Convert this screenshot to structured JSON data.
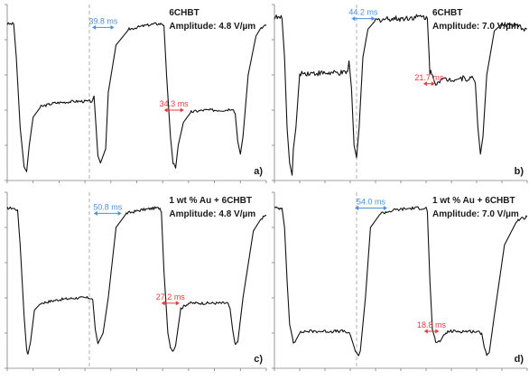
{
  "chart_data": [
    {
      "type": "line",
      "panel": "a)",
      "title": "6CHBT",
      "subtitle": "Amplitude: 4.8 V/µm",
      "xlabel": "",
      "ylabel": "",
      "grid": false,
      "xlim": [
        0,
        100
      ],
      "ylim": [
        0,
        100
      ],
      "series": [
        {
          "points": [
            [
              0,
              89
            ],
            [
              2.5,
              89
            ],
            [
              3.5,
              70
            ],
            [
              5,
              30
            ],
            [
              6.5,
              8
            ],
            [
              7.5,
              5
            ],
            [
              8.5,
              20
            ],
            [
              10,
              36
            ],
            [
              13,
              42
            ],
            [
              18,
              44
            ],
            [
              26,
              45
            ],
            [
              33,
              45
            ],
            [
              33.5,
              48
            ],
            [
              34,
              37
            ],
            [
              35,
              14
            ],
            [
              36,
              10
            ],
            [
              38,
              18
            ],
            [
              39,
              50
            ],
            [
              42,
              77
            ],
            [
              47,
              86
            ],
            [
              53,
              88
            ],
            [
              57,
              89
            ],
            [
              60,
              89
            ],
            [
              60.5,
              88
            ],
            [
              61.5,
              60
            ],
            [
              63,
              25
            ],
            [
              64,
              10
            ],
            [
              65,
              7
            ],
            [
              66,
              20
            ],
            [
              68,
              33
            ],
            [
              71,
              39
            ],
            [
              76,
              40
            ],
            [
              84,
              40
            ],
            [
              87,
              41
            ],
            [
              88,
              38
            ],
            [
              89,
              22
            ],
            [
              90,
              15
            ],
            [
              91,
              25
            ],
            [
              93,
              60
            ],
            [
              96,
              82
            ],
            [
              98,
              87
            ],
            [
              100,
              88
            ]
          ],
          "noise": 0.8
        }
      ],
      "annotations": [
        {
          "text": "39.8 ms",
          "color": "#4a90d9",
          "x1": 32.8,
          "x2": 41.3,
          "y": 87
        },
        {
          "text": "34.3 ms",
          "color": "#e53a3a",
          "x1": 60.5,
          "x2": 68.2,
          "y": 40
        }
      ]
    },
    {
      "type": "line",
      "panel": "b)",
      "title": "6CHBT",
      "subtitle": "Amplitude: 7.0 V/µm",
      "xlabel": "",
      "ylabel": "",
      "grid": false,
      "xlim": [
        0,
        100
      ],
      "ylim": [
        0,
        100
      ],
      "series": [
        {
          "points": [
            [
              0,
              93
            ],
            [
              3,
              92
            ],
            [
              4,
              70
            ],
            [
              5,
              30
            ],
            [
              6,
              10
            ],
            [
              7,
              3
            ],
            [
              7.5,
              18
            ],
            [
              8.5,
              30
            ],
            [
              10,
              61
            ],
            [
              28,
              61
            ],
            [
              29,
              62
            ],
            [
              29.5,
              68
            ],
            [
              30.5,
              52
            ],
            [
              31.5,
              20
            ],
            [
              32.5,
              13
            ],
            [
              33.5,
              30
            ],
            [
              35,
              70
            ],
            [
              37,
              86
            ],
            [
              40,
              91
            ],
            [
              45,
              92
            ],
            [
              50,
              92
            ],
            [
              57,
              93
            ],
            [
              59,
              93
            ],
            [
              60.5,
              92
            ],
            [
              61.5,
              62
            ],
            [
              62.5,
              60
            ],
            [
              63.5,
              55
            ],
            [
              65,
              57
            ],
            [
              73,
              58
            ],
            [
              79,
              58
            ],
            [
              79.5,
              55
            ],
            [
              80.5,
              30
            ],
            [
              81.5,
              15
            ],
            [
              82.5,
              25
            ],
            [
              84,
              60
            ],
            [
              87,
              85
            ],
            [
              90,
              89
            ],
            [
              95,
              88
            ],
            [
              100,
              86
            ]
          ],
          "noise": 1.6
        }
      ],
      "annotations": [
        {
          "text": "44.2 ms",
          "color": "#4a90d9",
          "x1": 30.5,
          "x2": 39.8,
          "y": 92
        },
        {
          "text": "21.7 ms",
          "color": "#e53a3a",
          "x1": 58.9,
          "x2": 63.5,
          "y": 55
        }
      ]
    },
    {
      "type": "line",
      "panel": "c)",
      "title": "1 wt % Au + 6CHBT",
      "subtitle": "Amplitude: 4.8 V/µm",
      "xlabel": "",
      "ylabel": "",
      "grid": false,
      "xlim": [
        0,
        100
      ],
      "ylim": [
        0,
        100
      ],
      "series": [
        {
          "points": [
            [
              0,
              91
            ],
            [
              2,
              91
            ],
            [
              4,
              90
            ],
            [
              5,
              70
            ],
            [
              6.5,
              30
            ],
            [
              7.5,
              10
            ],
            [
              8,
              8
            ],
            [
              9,
              15
            ],
            [
              10.5,
              33
            ],
            [
              13,
              37
            ],
            [
              20,
              39
            ],
            [
              27,
              40
            ],
            [
              32,
              40
            ],
            [
              33,
              39
            ],
            [
              34,
              22
            ],
            [
              35,
              14
            ],
            [
              37,
              20
            ],
            [
              39,
              40
            ],
            [
              42,
              80
            ],
            [
              46,
              88
            ],
            [
              52,
              90
            ],
            [
              57,
              91
            ],
            [
              59,
              91
            ],
            [
              59.5,
              89
            ],
            [
              60.5,
              55
            ],
            [
              62,
              20
            ],
            [
              63,
              12
            ],
            [
              64,
              10
            ],
            [
              65,
              13
            ],
            [
              67,
              34
            ],
            [
              70,
              37
            ],
            [
              80,
              37
            ],
            [
              85,
              37
            ],
            [
              86,
              34
            ],
            [
              87,
              22
            ],
            [
              88,
              13
            ],
            [
              89,
              15
            ],
            [
              91,
              40
            ],
            [
              95,
              78
            ],
            [
              98,
              85
            ],
            [
              100,
              87
            ]
          ],
          "noise": 0.8
        }
      ],
      "annotations": [
        {
          "text": "50.8 ms",
          "color": "#4a90d9",
          "x1": 33.4,
          "x2": 44.1,
          "y": 88
        },
        {
          "text": "27.2 ms",
          "color": "#e53a3a",
          "x1": 59.5,
          "x2": 66.5,
          "y": 37
        }
      ]
    },
    {
      "type": "line",
      "panel": "d)",
      "title": "1 wt % Au + 6CHBT",
      "subtitle": "Amplitude: 7.0 V/µm",
      "xlabel": "",
      "ylabel": "",
      "grid": false,
      "xlim": [
        0,
        100
      ],
      "ylim": [
        0,
        100
      ],
      "series": [
        {
          "points": [
            [
              0,
              91
            ],
            [
              3,
              91
            ],
            [
              4,
              80
            ],
            [
              5,
              50
            ],
            [
              6,
              25
            ],
            [
              7.5,
              15
            ],
            [
              8.5,
              16
            ],
            [
              10,
              20
            ],
            [
              12,
              21
            ],
            [
              20,
              21
            ],
            [
              28,
              21
            ],
            [
              30,
              19
            ],
            [
              32,
              10
            ],
            [
              33,
              7
            ],
            [
              34,
              10
            ],
            [
              36,
              40
            ],
            [
              38,
              80
            ],
            [
              42,
              88
            ],
            [
              48,
              90
            ],
            [
              55,
              91
            ],
            [
              60,
              91
            ],
            [
              60.5,
              89
            ],
            [
              61.5,
              50
            ],
            [
              62.5,
              22
            ],
            [
              63.5,
              17
            ],
            [
              64,
              14
            ],
            [
              65.5,
              15
            ],
            [
              67,
              19
            ],
            [
              69,
              21
            ],
            [
              79,
              21
            ],
            [
              82,
              20
            ],
            [
              83,
              12
            ],
            [
              84,
              8
            ],
            [
              85,
              9
            ],
            [
              87,
              30
            ],
            [
              91,
              70
            ],
            [
              96,
              84
            ],
            [
              100,
              86
            ]
          ],
          "noise": 0.9
        }
      ],
      "annotations": [
        {
          "text": "54.0 ms",
          "color": "#4a90d9",
          "x1": 31.8,
          "x2": 44.6,
          "y": 91
        },
        {
          "text": "18.8 ms",
          "color": "#e53a3a",
          "x1": 59.2,
          "x2": 65.1,
          "y": 21
        }
      ]
    }
  ]
}
